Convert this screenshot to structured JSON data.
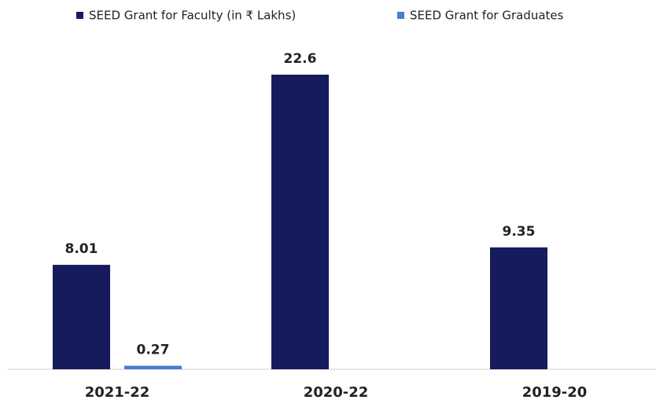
{
  "chart_data": {
    "type": "bar",
    "categories": [
      "2021-22",
      "2020-22",
      "2019-20"
    ],
    "series": [
      {
        "name": "SEED Grant for Faculty (in ₹ Lakhs)",
        "color": "#151b5c",
        "values": [
          8.01,
          22.6,
          9.35
        ]
      },
      {
        "name": "SEED Grant for Graduates",
        "color": "#4a7bd0",
        "values": [
          0.27,
          null,
          null
        ]
      }
    ],
    "legend": "top"
  }
}
